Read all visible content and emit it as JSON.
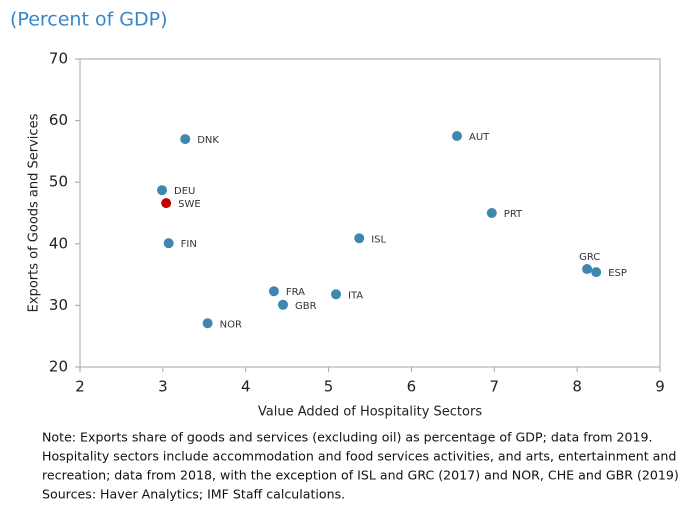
{
  "chart_data": {
    "type": "scatter",
    "title": "(Percent of GDP)",
    "x_label": "Value Added of Hospitality Sectors",
    "y_label": "Exports of Goods and Services",
    "labels": [
      "DNK",
      "AUT",
      "DEU",
      "SWE",
      "PRT",
      "ISL",
      "FIN",
      "GRC",
      "ESP",
      "FRA",
      "ITA",
      "GBR",
      "NOR"
    ],
    "x": [
      3.27,
      6.55,
      2.99,
      3.04,
      6.97,
      5.37,
      3.07,
      8.12,
      8.23,
      4.34,
      5.09,
      4.45,
      3.54
    ],
    "y": [
      57.0,
      57.5,
      48.7,
      46.6,
      45.0,
      40.9,
      40.1,
      35.9,
      35.4,
      32.3,
      31.8,
      30.1,
      27.1
    ],
    "colors": [
      "#3d87b0",
      "#3d87b0",
      "#3d87b0",
      "#c00000",
      "#3d87b0",
      "#3d87b0",
      "#3d87b0",
      "#3d87b0",
      "#3d87b0",
      "#3d87b0",
      "#3d87b0",
      "#3d87b0",
      "#3d87b0"
    ],
    "xlim": [
      2,
      9
    ],
    "xticks": [
      2,
      3,
      4,
      5,
      6,
      7,
      8,
      9
    ],
    "ylim": [
      20,
      70
    ],
    "yticks": [
      20,
      30,
      40,
      50,
      60,
      70
    ],
    "notes": [
      "Note: Exports share of goods and services (excluding oil) as percentage of GDP; data from 2019.",
      "Hospitality sectors include accommodation and food services activities,  and arts, entertainment and",
      "recreation; data from 2018, with the exception of ISL and GRC (2017) and NOR, CHE and GBR (2019)",
      "Sources: Haver Analytics; IMF Staff calculations."
    ]
  }
}
